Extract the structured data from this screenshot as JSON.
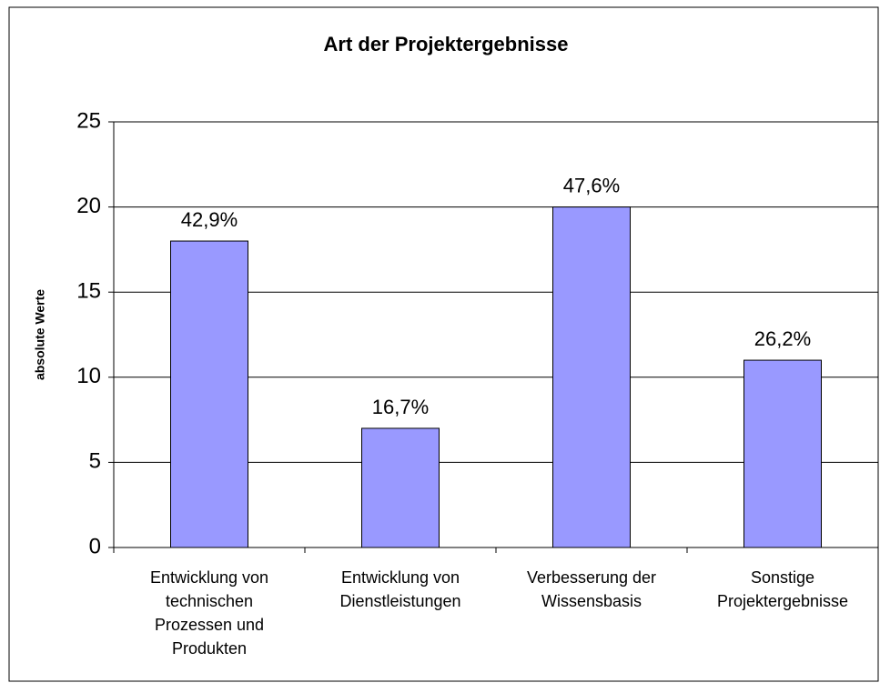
{
  "chart_data": {
    "type": "bar",
    "title": "Art der Projektergebnisse",
    "y_label": "absolute Werte",
    "categories": [
      "Entwicklung von technischen Prozessen und Produkten",
      "Entwicklung von Dienstleistungen",
      "Verbesserung der Wissensbasis",
      "Sonstige Projektergebnisse"
    ],
    "values": [
      18,
      7,
      20,
      11
    ],
    "value_labels": [
      "42,9%",
      "16,7%",
      "47,6%",
      "26,2%"
    ],
    "color": "#9999ff",
    "ylim": [
      0,
      25
    ],
    "yticks": [
      0,
      5,
      10,
      15,
      20,
      25
    ],
    "grid": true
  }
}
